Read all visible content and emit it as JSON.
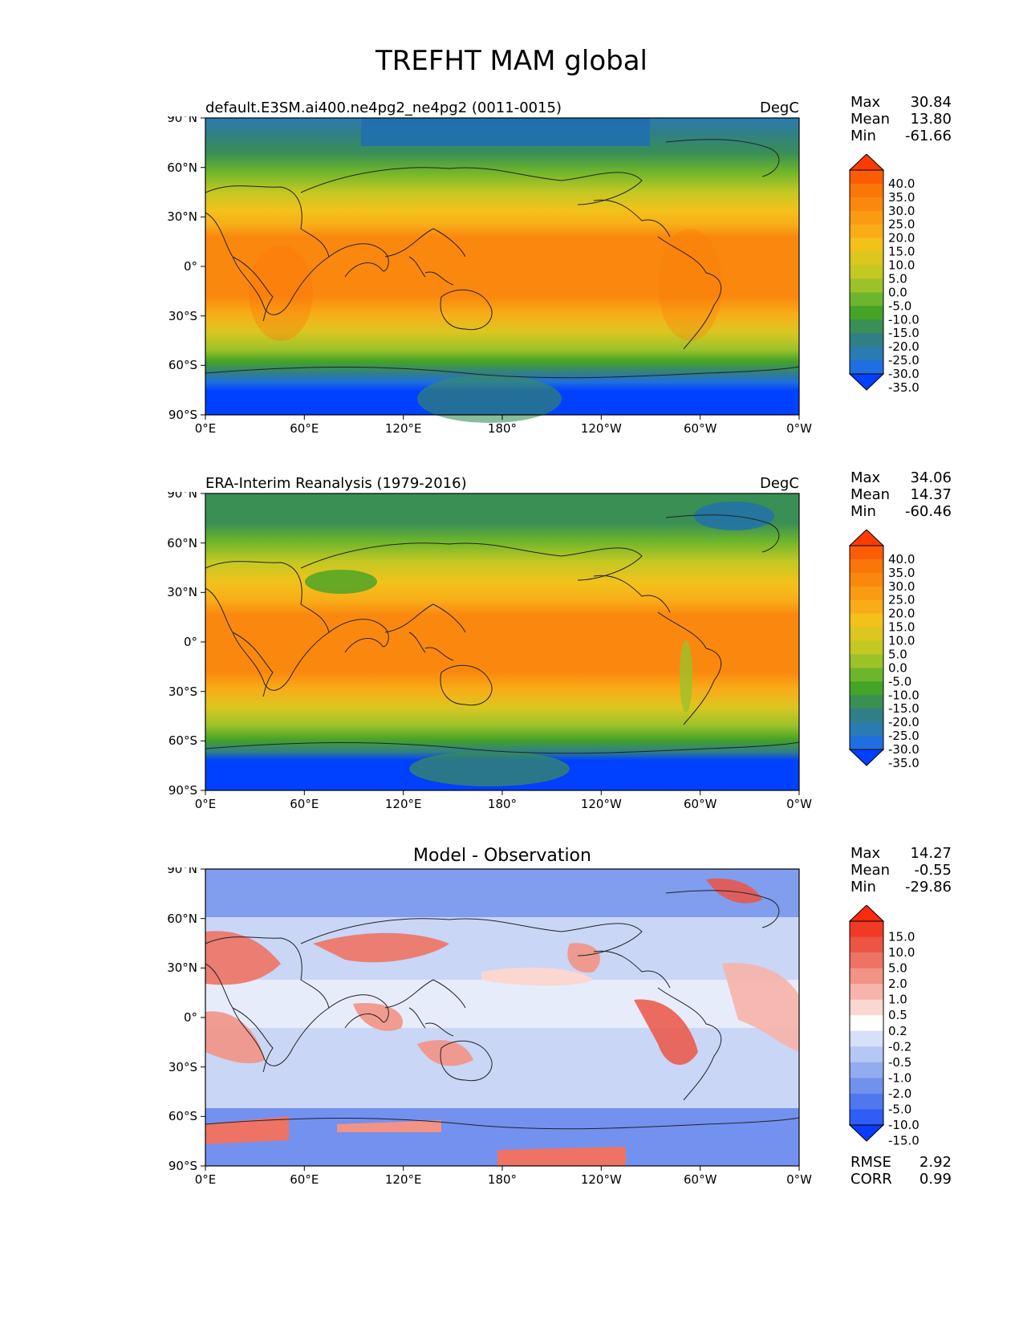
{
  "title": "TREFHT MAM global",
  "axes": {
    "lat_ticks": [
      "90°N",
      "60°N",
      "30°N",
      "0°",
      "30°S",
      "60°S",
      "90°S"
    ],
    "lon_ticks": [
      "0°E",
      "60°E",
      "120°E",
      "180°",
      "120°W",
      "60°W",
      "0°W"
    ]
  },
  "panels": [
    {
      "id": "model",
      "left_title": "default.E3SM.ai400.ne4pg2_ne4pg2 (0011-0015)",
      "center_title": "",
      "units": "DegC",
      "stats": {
        "max_label": "Max",
        "max": "30.84",
        "mean_label": "Mean",
        "mean": "13.80",
        "min_label": "Min",
        "min": "-61.66"
      },
      "colorbar": {
        "labels": [
          "40.0",
          "35.0",
          "30.0",
          "25.0",
          "20.0",
          "15.0",
          "10.0",
          "5.0",
          "0.0",
          "-5.0",
          "-10.0",
          "-15.0",
          "-20.0",
          "-25.0",
          "-30.0",
          "-35.0"
        ],
        "colors": [
          "#0040ff",
          "#1f6fe0",
          "#2b7bb3",
          "#307f87",
          "#3a8f55",
          "#45a327",
          "#6db52c",
          "#9cc22a",
          "#c4c823",
          "#dcc620",
          "#f2c21b",
          "#f8ad18",
          "#f99b13",
          "#fa880e",
          "#fb7609",
          "#fb5c05",
          "#fd3c02"
        ]
      }
    },
    {
      "id": "obs",
      "left_title": "ERA-Interim Reanalysis (1979-2016)",
      "center_title": "",
      "units": "DegC",
      "stats": {
        "max_label": "Max",
        "max": "34.06",
        "mean_label": "Mean",
        "mean": "14.37",
        "min_label": "Min",
        "min": "-60.46"
      },
      "colorbar": {
        "labels": [
          "40.0",
          "35.0",
          "30.0",
          "25.0",
          "20.0",
          "15.0",
          "10.0",
          "5.0",
          "0.0",
          "-5.0",
          "-10.0",
          "-15.0",
          "-20.0",
          "-25.0",
          "-30.0",
          "-35.0"
        ],
        "colors": [
          "#0040ff",
          "#1f6fe0",
          "#2b7bb3",
          "#307f87",
          "#3a8f55",
          "#45a327",
          "#6db52c",
          "#9cc22a",
          "#c4c823",
          "#dcc620",
          "#f2c21b",
          "#f8ad18",
          "#f99b13",
          "#fa880e",
          "#fb7609",
          "#fb5c05",
          "#fd3c02"
        ]
      }
    },
    {
      "id": "diff",
      "left_title": "",
      "center_title": "Model - Observation",
      "units": "",
      "stats": {
        "max_label": "Max",
        "max": "14.27",
        "mean_label": "Mean",
        "mean": "-0.55",
        "min_label": "Min",
        "min": "-29.86"
      },
      "metrics": {
        "rmse_label": "RMSE",
        "rmse": "2.92",
        "corr_label": "CORR",
        "corr": "0.99"
      },
      "colorbar": {
        "labels": [
          "15.0",
          "10.0",
          "5.0",
          "2.0",
          "1.0",
          "0.5",
          "0.2",
          "-0.2",
          "-0.5",
          "-1.0",
          "-2.0",
          "-5.0",
          "-10.0",
          "-15.0"
        ],
        "colors": [
          "#0a3cff",
          "#2f5df5",
          "#4f78ee",
          "#7192ec",
          "#92acf0",
          "#b5c7f4",
          "#d7e0f9",
          "#ffffff",
          "#fbd7d2",
          "#f6b4aa",
          "#f29385",
          "#ee7364",
          "#ec5544",
          "#f03a26",
          "#fb2a10"
        ]
      }
    }
  ],
  "chart_data": {
    "type": "heatmap",
    "title": "TREFHT MAM global",
    "units": "DegC",
    "panels": [
      {
        "name": "default.E3SM.ai400.ne4pg2_ne4pg2 (0011-0015)",
        "max": 30.84,
        "mean": 13.8,
        "min": -61.66
      },
      {
        "name": "ERA-Interim Reanalysis (1979-2016)",
        "max": 34.06,
        "mean": 14.37,
        "min": -60.46
      },
      {
        "name": "Model - Observation",
        "max": 14.27,
        "mean": -0.55,
        "min": -29.86,
        "rmse": 2.92,
        "corr": 0.99
      }
    ],
    "x_ticks": [
      "0°E",
      "60°E",
      "120°E",
      "180°",
      "120°W",
      "60°W",
      "0°W"
    ],
    "y_ticks": [
      "90°N",
      "60°N",
      "30°N",
      "0°",
      "30°S",
      "60°S",
      "90°S"
    ],
    "xlim": [
      0,
      360
    ],
    "ylim": [
      -90,
      90
    ]
  }
}
